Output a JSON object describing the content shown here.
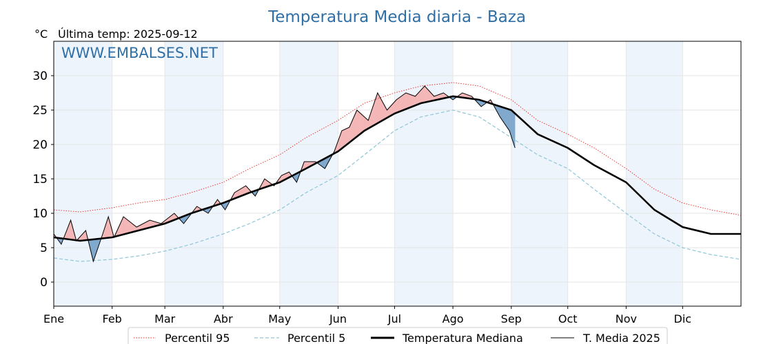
{
  "header": {
    "title": "Temperatura Media diaria - Baza",
    "unit": "°C",
    "last_temp_label": "Última temp: 2025-09-12",
    "watermark": "WWW.EMBALSES.NET"
  },
  "colors": {
    "title": "#2f6fa6",
    "p95": "#e8231f",
    "p5": "#8ec6d8",
    "median": "#000000",
    "t2025": "#000000",
    "above_fill": "#f4b6b6",
    "below_fill": "#7fa8cc",
    "month_band": "#eef4fb"
  },
  "chart_data": {
    "type": "line",
    "title": "Temperatura Media diaria - Baza",
    "ylabel": "°C",
    "xlabel": "",
    "ylim": [
      -3.5,
      35
    ],
    "xlim": [
      1,
      366
    ],
    "grid": true,
    "legend_position": "bottom",
    "x_ticks": [
      {
        "label": "Ene",
        "day": 1
      },
      {
        "label": "Feb",
        "day": 32
      },
      {
        "label": "Mar",
        "day": 60
      },
      {
        "label": "Abr",
        "day": 91
      },
      {
        "label": "May",
        "day": 121
      },
      {
        "label": "Jun",
        "day": 152
      },
      {
        "label": "Jul",
        "day": 182
      },
      {
        "label": "Ago",
        "day": 213
      },
      {
        "label": "Sep",
        "day": 244
      },
      {
        "label": "Oct",
        "day": 274
      },
      {
        "label": "Nov",
        "day": 305
      },
      {
        "label": "Dic",
        "day": 335
      }
    ],
    "y_ticks": [
      0,
      5,
      10,
      15,
      20,
      25,
      30
    ],
    "series": [
      {
        "name": "Percentil 95",
        "style": "dotted",
        "points": [
          [
            1,
            10.5
          ],
          [
            15,
            10.2
          ],
          [
            32,
            10.8
          ],
          [
            46,
            11.5
          ],
          [
            60,
            12.0
          ],
          [
            74,
            13.0
          ],
          [
            91,
            14.5
          ],
          [
            105,
            16.5
          ],
          [
            121,
            18.5
          ],
          [
            135,
            21.0
          ],
          [
            152,
            23.5
          ],
          [
            166,
            26.0
          ],
          [
            182,
            27.5
          ],
          [
            196,
            28.5
          ],
          [
            213,
            29.0
          ],
          [
            227,
            28.5
          ],
          [
            244,
            26.5
          ],
          [
            258,
            23.5
          ],
          [
            274,
            21.5
          ],
          [
            288,
            19.5
          ],
          [
            305,
            16.5
          ],
          [
            320,
            13.5
          ],
          [
            335,
            11.5
          ],
          [
            350,
            10.5
          ],
          [
            366,
            9.7
          ]
        ]
      },
      {
        "name": "Percentil 5",
        "style": "dashed",
        "points": [
          [
            1,
            3.5
          ],
          [
            15,
            3.0
          ],
          [
            32,
            3.3
          ],
          [
            46,
            3.8
          ],
          [
            60,
            4.5
          ],
          [
            74,
            5.5
          ],
          [
            91,
            7.0
          ],
          [
            105,
            8.5
          ],
          [
            121,
            10.5
          ],
          [
            135,
            13.0
          ],
          [
            152,
            15.5
          ],
          [
            166,
            18.5
          ],
          [
            182,
            22.0
          ],
          [
            196,
            24.0
          ],
          [
            213,
            25.0
          ],
          [
            227,
            24.0
          ],
          [
            244,
            21.0
          ],
          [
            258,
            18.5
          ],
          [
            274,
            16.5
          ],
          [
            288,
            13.5
          ],
          [
            305,
            10.0
          ],
          [
            320,
            7.0
          ],
          [
            335,
            5.0
          ],
          [
            350,
            4.0
          ],
          [
            366,
            3.3
          ]
        ]
      },
      {
        "name": "Temperatura Mediana",
        "style": "solid-thick",
        "points": [
          [
            1,
            6.5
          ],
          [
            15,
            6.0
          ],
          [
            32,
            6.5
          ],
          [
            46,
            7.5
          ],
          [
            60,
            8.5
          ],
          [
            74,
            10.0
          ],
          [
            91,
            11.5
          ],
          [
            105,
            13.0
          ],
          [
            121,
            14.5
          ],
          [
            135,
            16.5
          ],
          [
            152,
            19.0
          ],
          [
            166,
            22.0
          ],
          [
            182,
            24.5
          ],
          [
            196,
            26.0
          ],
          [
            213,
            27.0
          ],
          [
            227,
            26.5
          ],
          [
            244,
            25.0
          ],
          [
            258,
            21.5
          ],
          [
            274,
            19.5
          ],
          [
            288,
            17.0
          ],
          [
            305,
            14.5
          ],
          [
            320,
            10.5
          ],
          [
            335,
            8.0
          ],
          [
            350,
            7.0
          ],
          [
            366,
            7.0
          ]
        ]
      },
      {
        "name": "T. Media 2025",
        "style": "solid-thin",
        "points": [
          [
            1,
            7.0
          ],
          [
            5,
            5.5
          ],
          [
            10,
            9.0
          ],
          [
            13,
            6.0
          ],
          [
            18,
            7.5
          ],
          [
            22,
            3.0
          ],
          [
            27,
            7.0
          ],
          [
            30,
            9.5
          ],
          [
            33,
            6.5
          ],
          [
            38,
            9.5
          ],
          [
            45,
            8.0
          ],
          [
            52,
            9.0
          ],
          [
            58,
            8.5
          ],
          [
            65,
            10.0
          ],
          [
            70,
            8.5
          ],
          [
            77,
            11.0
          ],
          [
            83,
            10.0
          ],
          [
            88,
            12.0
          ],
          [
            92,
            10.5
          ],
          [
            97,
            13.0
          ],
          [
            103,
            14.0
          ],
          [
            108,
            12.5
          ],
          [
            113,
            15.0
          ],
          [
            118,
            14.0
          ],
          [
            122,
            15.5
          ],
          [
            126,
            16.0
          ],
          [
            130,
            14.5
          ],
          [
            134,
            17.5
          ],
          [
            140,
            17.5
          ],
          [
            145,
            16.5
          ],
          [
            150,
            19.0
          ],
          [
            154,
            22.0
          ],
          [
            158,
            22.5
          ],
          [
            162,
            25.0
          ],
          [
            168,
            23.5
          ],
          [
            173,
            27.5
          ],
          [
            178,
            25.0
          ],
          [
            183,
            26.5
          ],
          [
            188,
            27.5
          ],
          [
            193,
            27.0
          ],
          [
            198,
            28.5
          ],
          [
            203,
            27.0
          ],
          [
            208,
            27.5
          ],
          [
            213,
            26.5
          ],
          [
            218,
            27.5
          ],
          [
            223,
            27.0
          ],
          [
            228,
            25.5
          ],
          [
            233,
            26.5
          ],
          [
            238,
            24.0
          ],
          [
            243,
            22.0
          ],
          [
            246,
            19.5
          ]
        ]
      }
    ]
  },
  "legend": {
    "items": [
      {
        "label": "Percentil 95"
      },
      {
        "label": "Percentil 5"
      },
      {
        "label": "Temperatura Mediana"
      },
      {
        "label": "T. Media 2025"
      }
    ]
  }
}
